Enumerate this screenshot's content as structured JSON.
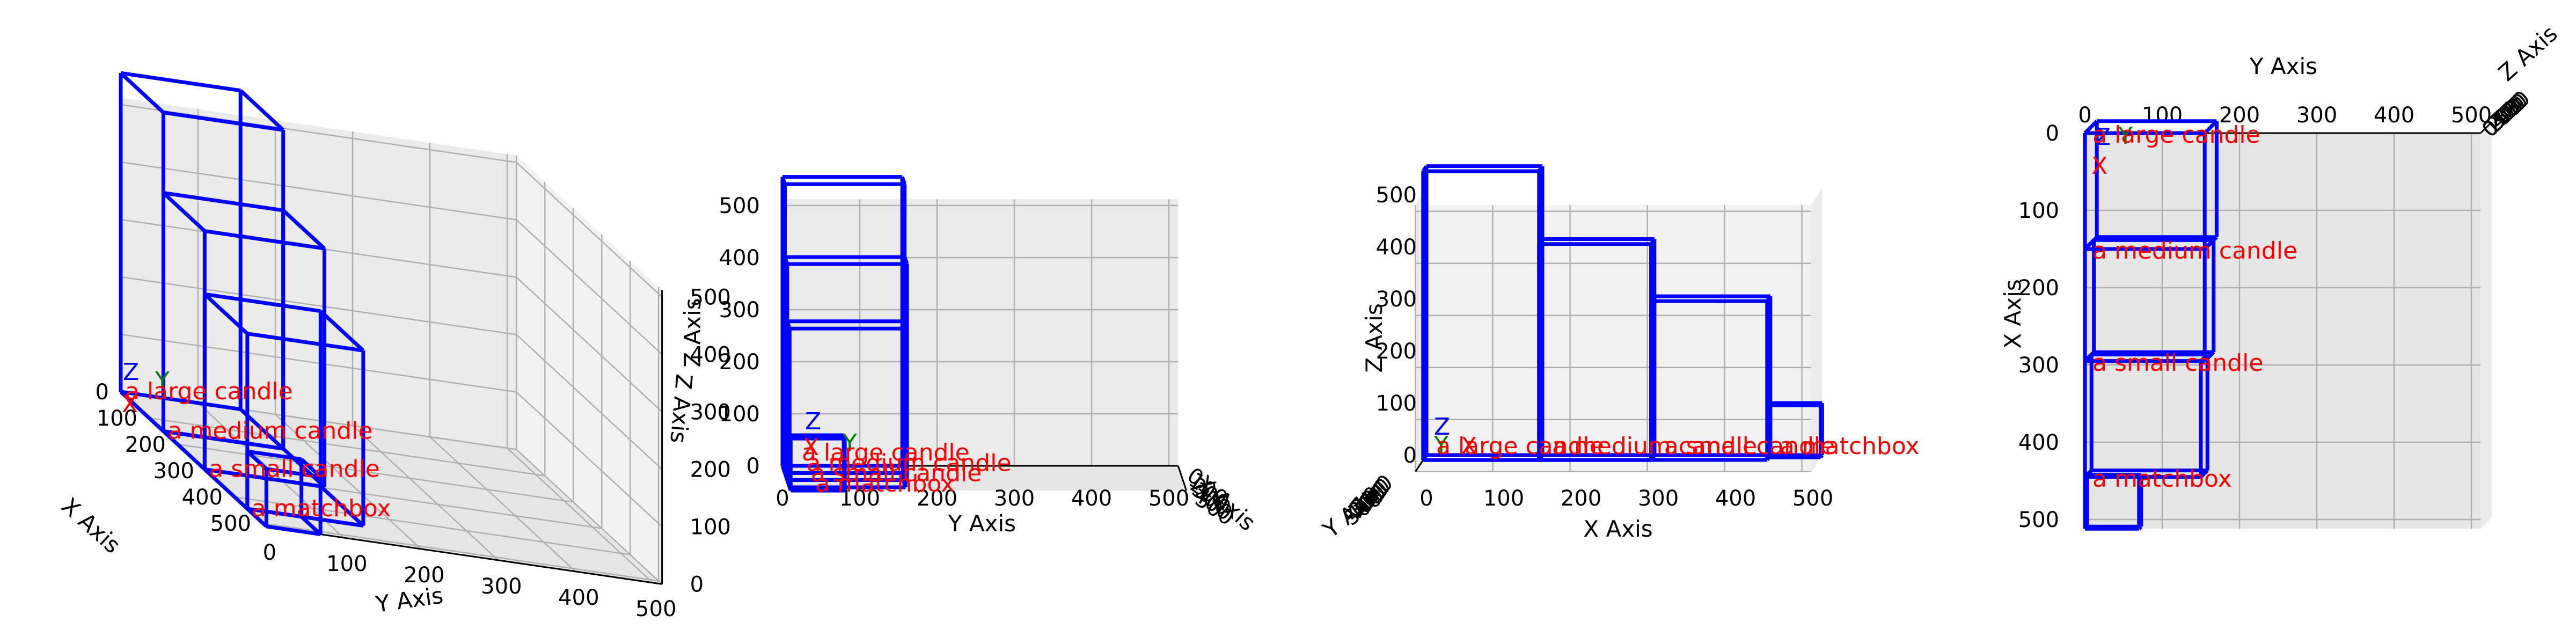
{
  "chart_data": {
    "type": "3d-bounding-boxes",
    "views": [
      "perspective",
      "side (Y-Z)",
      "front (X-Z)",
      "top (X-Y)"
    ],
    "axes": {
      "x_label": "X Axis",
      "y_label": "Y Axis",
      "z_label": "Z Axis",
      "ticks": [
        0,
        100,
        200,
        300,
        400,
        500
      ],
      "xlim": [
        0,
        512
      ],
      "ylim": [
        0,
        512
      ],
      "zlim": [
        0,
        512
      ]
    },
    "origin_marks": [
      "X",
      "Y",
      "Z"
    ],
    "objects": [
      {
        "label": "a large candle",
        "x": [
          0,
          150
        ],
        "y": [
          0,
          155
        ],
        "z": [
          0,
          555
        ]
      },
      {
        "label": "a medium candle",
        "x": [
          150,
          295
        ],
        "y": [
          0,
          155
        ],
        "z": [
          0,
          415
        ]
      },
      {
        "label": "a small candle",
        "x": [
          295,
          445
        ],
        "y": [
          0,
          150
        ],
        "z": [
          0,
          305
        ]
      },
      {
        "label": "a matchbox",
        "x": [
          445,
          512
        ],
        "y": [
          0,
          70
        ],
        "z": [
          0,
          100
        ]
      }
    ],
    "colors": {
      "box": "#0000ff",
      "label": "#ff0000",
      "x_mark": "#ff0000",
      "y_mark": "#008000",
      "z_mark": "#0000ff"
    },
    "grid": true
  }
}
